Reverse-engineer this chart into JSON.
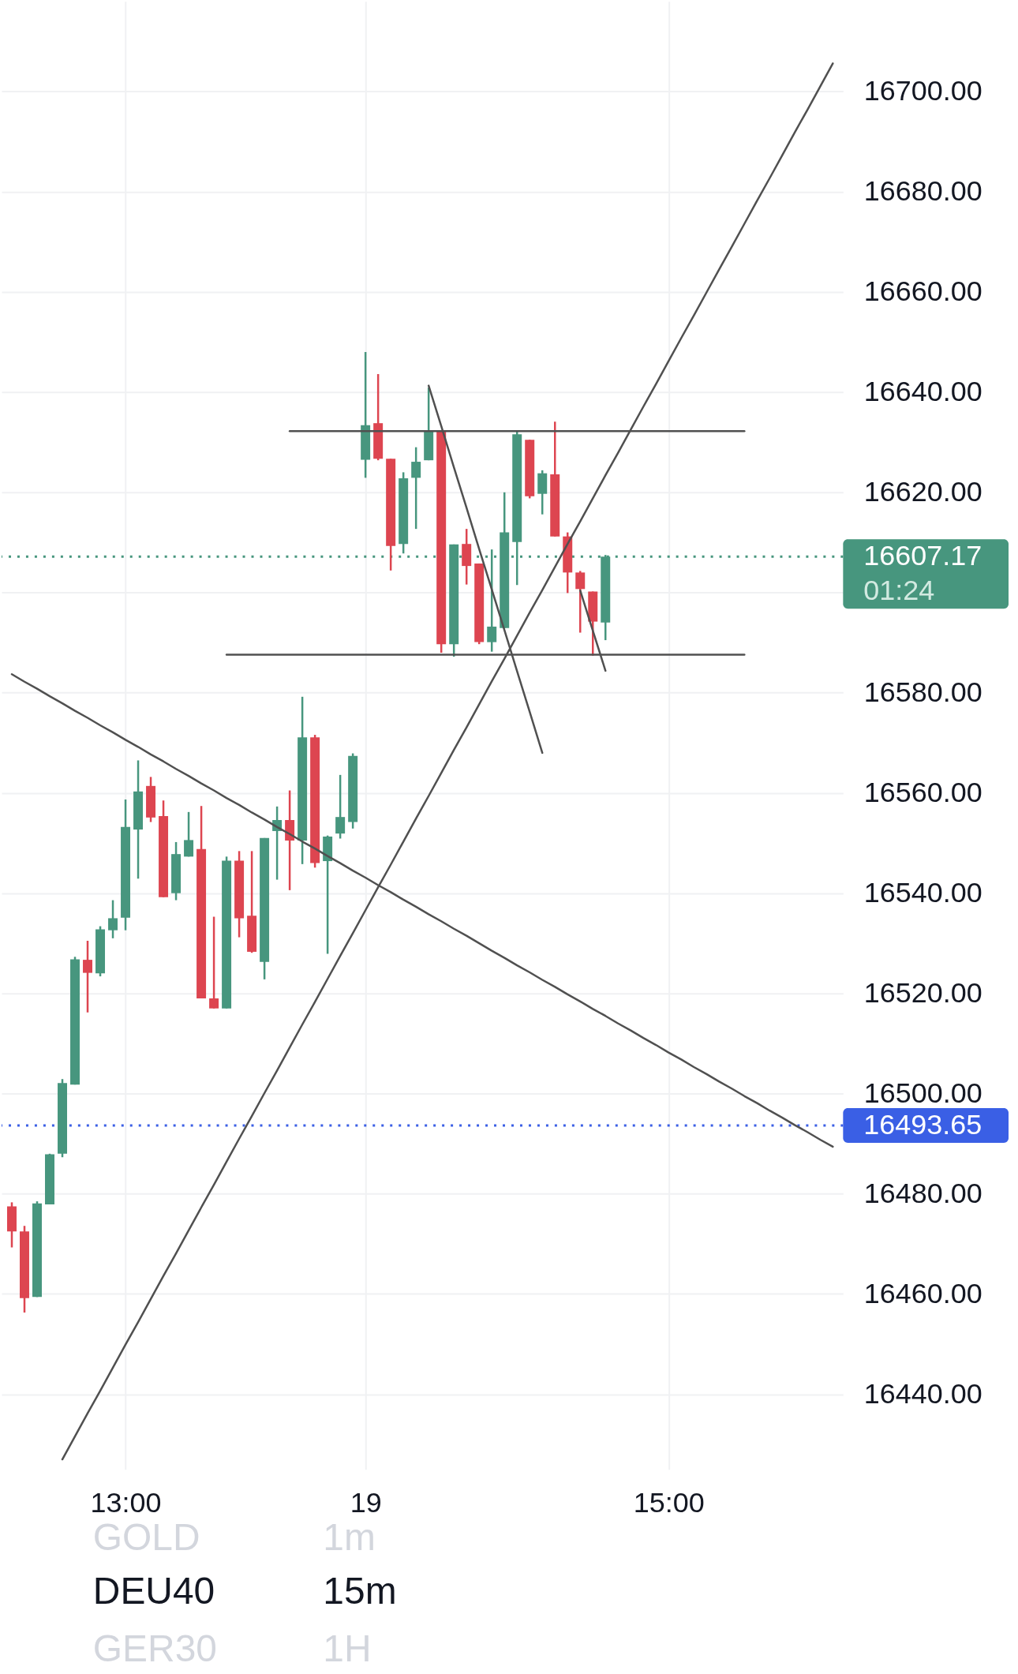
{
  "chart_data": {
    "type": "candlestick",
    "title": "DEU40",
    "subtitle": "15m",
    "categories": [
      null,
      null,
      null,
      null,
      null,
      null,
      null,
      null,
      null,
      "13:00",
      null,
      null,
      null,
      null,
      null,
      null,
      null,
      null,
      null,
      null,
      null,
      null,
      null,
      null,
      null,
      null,
      null,
      null,
      "19",
      null,
      null,
      null,
      null,
      null,
      null,
      null,
      null,
      null,
      null,
      null,
      null,
      null,
      null,
      null,
      null,
      null,
      null,
      null,
      null,
      null,
      null,
      null,
      "15:00",
      null,
      null,
      null,
      null,
      null,
      null,
      null,
      null,
      null,
      null,
      null,
      null,
      null
    ],
    "ohlc": [
      [
        16477.5,
        16478.3,
        16469.3,
        16472.5
      ],
      [
        16472.5,
        16473.6,
        16456.3,
        16459.2
      ],
      [
        16459.4,
        16478.5,
        16459.4,
        16478.1
      ],
      [
        16477.9,
        16488.0,
        16477.9,
        16487.9
      ],
      [
        16488.0,
        16502.9,
        16487.3,
        16502.1
      ],
      [
        16501.8,
        16527.3,
        16501.8,
        16526.8
      ],
      [
        16526.7,
        16530.5,
        16516.2,
        16524.1
      ],
      [
        16524.0,
        16533.4,
        16523.4,
        16532.8
      ],
      [
        16532.6,
        16538.6,
        16531.0,
        16535.0
      ],
      [
        16535.1,
        16558.7,
        16532.6,
        16553.2
      ],
      [
        16552.7,
        16566.5,
        16542.9,
        16560.3
      ],
      [
        16561.4,
        16563.2,
        16554.2,
        16555.1
      ],
      [
        16555.4,
        16558.5,
        16539.2,
        16539.2
      ],
      [
        16540.0,
        16550.2,
        16538.6,
        16547.8
      ],
      [
        16547.3,
        16556.2,
        16547.3,
        16550.6
      ],
      [
        16548.8,
        16557.4,
        16519.0,
        16519.0
      ],
      [
        16519.0,
        16535.3,
        16517.0,
        16517.0
      ],
      [
        16517.0,
        16547.3,
        16517.0,
        16546.5
      ],
      [
        16546.5,
        16548.4,
        16531.2,
        16535.0
      ],
      [
        16535.5,
        16548.4,
        16528.1,
        16528.3
      ],
      [
        16526.3,
        16551.0,
        16522.8,
        16551.0
      ],
      [
        16552.4,
        16557.3,
        16542.7,
        16554.6
      ],
      [
        16554.6,
        16560.5,
        16540.6,
        16550.5
      ],
      [
        16550.5,
        16579.2,
        16545.8,
        16571.1
      ],
      [
        16571.1,
        16571.6,
        16545.1,
        16546.0
      ],
      [
        16546.4,
        16551.5,
        16527.9,
        16551.3
      ],
      [
        16551.9,
        16563.6,
        16550.9,
        16555.2
      ],
      [
        16554.2,
        16567.9,
        16552.9,
        16567.4
      ],
      [
        16626.5,
        16648.0,
        16622.9,
        16633.4
      ],
      [
        16633.8,
        16643.6,
        16626.4,
        16626.7
      ],
      [
        16626.7,
        16626.7,
        16604.4,
        16609.3
      ],
      [
        16609.7,
        16624.0,
        16607.8,
        16622.8
      ],
      [
        16622.9,
        16629.0,
        16612.7,
        16626.1
      ],
      [
        16626.4,
        16640.9,
        16626.4,
        16632.4
      ],
      [
        16632.2,
        16632.2,
        16588.0,
        16589.7
      ],
      [
        16589.7,
        16609.6,
        16587.2,
        16609.6
      ],
      [
        16609.7,
        16612.7,
        16601.6,
        16605.3
      ],
      [
        16605.8,
        16605.8,
        16589.7,
        16590.1
      ],
      [
        16590.1,
        16608.6,
        16588.2,
        16593.2
      ],
      [
        16592.9,
        16620.0,
        16592.9,
        16612.0
      ],
      [
        16610.1,
        16632.4,
        16601.5,
        16631.6
      ],
      [
        16630.5,
        16630.5,
        16618.8,
        16619.2
      ],
      [
        16619.7,
        16624.4,
        16615.6,
        16623.8
      ],
      [
        16623.6,
        16634.1,
        16611.2,
        16611.2
      ],
      [
        16611.2,
        16612.0,
        16599.9,
        16604.0
      ],
      [
        16604.0,
        16604.3,
        16592.0,
        16600.7
      ],
      [
        16600.2,
        16600.2,
        16587.4,
        16594.2
      ],
      [
        16594.0,
        16607.5,
        16590.5,
        16607.17
      ],
      null,
      null,
      null,
      null,
      null,
      null,
      null,
      null,
      null,
      null,
      null,
      null,
      null,
      null,
      null,
      null,
      null,
      null
    ],
    "colors": [
      "#dd4550",
      "#dd4550",
      "#47967e",
      "#47967e",
      "#47967e",
      "#47967e",
      "#dd4550",
      "#47967e",
      "#47967e",
      "#47967e",
      "#47967e",
      "#dd4550",
      "#dd4550",
      "#47967e",
      "#47967e",
      "#dd4550",
      "#dd4550",
      "#47967e",
      "#dd4550",
      "#dd4550",
      "#47967e",
      "#47967e",
      "#dd4550",
      "#47967e",
      "#dd4550",
      "#47967e",
      "#47967e",
      "#47967e",
      "#47967e",
      "#dd4550",
      "#dd4550",
      "#47967e",
      "#47967e",
      "#47967e",
      "#dd4550",
      "#47967e",
      "#dd4550",
      "#dd4550",
      "#47967e",
      "#47967e",
      "#47967e",
      "#dd4550",
      "#47967e",
      "#dd4550",
      "#dd4550",
      "#dd4550",
      "#dd4550",
      "#47967e",
      null,
      null,
      null,
      null,
      null,
      null,
      null,
      null,
      null,
      null,
      null,
      null,
      null,
      null,
      null,
      null,
      null,
      null
    ],
    "series": [
      {
        "type": "line",
        "color": "#505050",
        "values": [
          16583.7,
          16582.2,
          16580.8,
          16579.3,
          16577.9,
          16576.4,
          16575.0,
          16573.5,
          16572.1,
          16570.6,
          16569.2,
          16567.7,
          16566.3,
          16564.8,
          16563.4,
          16561.9,
          16560.5,
          16559.0,
          16557.6,
          16556.1,
          16554.7,
          16553.2,
          16551.8,
          16550.3,
          16548.9,
          16547.4,
          16546.0,
          16544.5,
          16543.1,
          16541.6,
          16540.2,
          16538.7,
          16537.3,
          16535.8,
          16534.4,
          16532.9,
          16531.5,
          16530.0,
          16528.5,
          16527.1,
          16525.6,
          16524.2,
          16522.7,
          16521.3,
          16519.8,
          16518.4,
          16516.9,
          16515.5,
          16514.0,
          16512.6,
          16511.1,
          16509.7,
          16508.2,
          16506.8,
          16505.3,
          16503.9,
          16502.4,
          16501.0,
          16499.5,
          16498.1,
          16496.6,
          16495.2,
          16493.7,
          16492.3,
          16490.8,
          16489.4
        ]
      },
      {
        "type": "line",
        "color": "#505050",
        "values": [
          null,
          null,
          null,
          null,
          16427.0,
          16431.6,
          16436.2,
          16440.7,
          16445.3,
          16449.9,
          16454.4,
          16459.0,
          16463.6,
          16468.1,
          16472.7,
          16477.3,
          16481.8,
          16486.4,
          16491.0,
          16495.5,
          16500.1,
          16504.6,
          16509.2,
          16513.8,
          16518.3,
          16522.9,
          16527.5,
          16532.0,
          16536.6,
          16541.2,
          16545.7,
          16550.3,
          16554.9,
          16559.4,
          16564.0,
          16568.6,
          16573.1,
          16577.7,
          16582.3,
          16586.8,
          16591.4,
          16596.0,
          16600.5,
          16605.1,
          16609.7,
          16614.2,
          16618.8,
          16623.4,
          16627.9,
          16632.5,
          16637.1,
          16641.6,
          16646.2,
          16650.8,
          16655.3,
          16659.9,
          16664.5,
          16669.0,
          16673.6,
          16678.2,
          16682.7,
          16687.3,
          16691.9,
          16696.4,
          16701.0,
          16705.6
        ]
      },
      {
        "type": "line",
        "color": "#505050",
        "values": [
          null,
          null,
          null,
          null,
          null,
          null,
          null,
          null,
          null,
          null,
          null,
          null,
          null,
          null,
          null,
          null,
          null,
          null,
          null,
          null,
          null,
          null,
          16632.2,
          16632.2,
          16632.2,
          16632.2,
          16632.2,
          16632.2,
          16632.2,
          16632.2,
          16632.2,
          16632.2,
          16632.2,
          16632.2,
          16632.2,
          16632.2,
          16632.2,
          16632.2,
          16632.2,
          16632.2,
          16632.2,
          16632.2,
          16632.2,
          16632.2,
          16632.2,
          16632.2,
          16632.2,
          16632.2,
          16632.2,
          16632.2,
          16632.2,
          16632.2,
          16632.2,
          16632.2,
          16632.2,
          16632.2,
          16632.2,
          16632.2,
          16632.2,
          null,
          null,
          null,
          null,
          null,
          null,
          null
        ]
      },
      {
        "type": "line",
        "color": "#505050",
        "values": [
          null,
          null,
          null,
          null,
          null,
          null,
          null,
          null,
          null,
          null,
          null,
          null,
          null,
          null,
          null,
          null,
          null,
          16587.6,
          16587.6,
          16587.6,
          16587.6,
          16587.6,
          16587.6,
          16587.6,
          16587.6,
          16587.6,
          16587.6,
          16587.6,
          16587.6,
          16587.6,
          16587.6,
          16587.6,
          16587.6,
          16587.6,
          16587.6,
          16587.6,
          16587.6,
          16587.6,
          16587.6,
          16587.6,
          16587.6,
          16587.6,
          16587.6,
          16587.6,
          16587.6,
          16587.6,
          16587.6,
          16587.6,
          16587.6,
          16587.6,
          16587.6,
          16587.6,
          16587.6,
          16587.6,
          16587.6,
          16587.6,
          16587.6,
          16587.6,
          16587.6,
          null,
          null,
          null,
          null,
          null,
          null,
          null
        ]
      },
      {
        "type": "line",
        "color": "#505050",
        "values": [
          null,
          null,
          null,
          null,
          null,
          null,
          null,
          null,
          null,
          null,
          null,
          null,
          null,
          null,
          null,
          null,
          null,
          null,
          null,
          null,
          null,
          null,
          null,
          null,
          null,
          null,
          null,
          null,
          null,
          null,
          null,
          null,
          null,
          16641.3,
          16633.2,
          16625.0,
          16616.9,
          16608.7,
          16600.6,
          16592.5,
          16584.3,
          16576.2,
          16568.0,
          null,
          null,
          null,
          null,
          null,
          null,
          null,
          null,
          null,
          null,
          null,
          null,
          null,
          null,
          null,
          null,
          null,
          null,
          null,
          null,
          null,
          null,
          null
        ]
      },
      {
        "type": "line",
        "color": "#505050",
        "values": [
          null,
          null,
          null,
          null,
          null,
          null,
          null,
          null,
          null,
          null,
          null,
          null,
          null,
          null,
          null,
          null,
          null,
          null,
          null,
          null,
          null,
          null,
          null,
          null,
          null,
          null,
          null,
          null,
          null,
          null,
          null,
          null,
          null,
          null,
          null,
          null,
          null,
          null,
          null,
          null,
          null,
          null,
          null,
          null,
          null,
          16600.4,
          16592.4,
          16584.4,
          null,
          null,
          null,
          null,
          null,
          null,
          null,
          null,
          null,
          null,
          null,
          null,
          null,
          null,
          null,
          null,
          null,
          null
        ]
      }
    ],
    "line_style": "solid",
    "ylim": [
      16425,
      16718
    ],
    "yticks": [
      {
        "value": 16440,
        "label": "16440.00"
      },
      {
        "value": 16460,
        "label": "16460.00"
      },
      {
        "value": 16480,
        "label": "16480.00"
      },
      {
        "value": 16500,
        "label": "16500.00"
      },
      {
        "value": 16520,
        "label": "16520.00"
      },
      {
        "value": 16540,
        "label": "16540.00"
      },
      {
        "value": 16560,
        "label": "16560.00"
      },
      {
        "value": 16580,
        "label": "16580.00"
      },
      {
        "value": 16600,
        "label": null
      },
      {
        "value": 16620,
        "label": "16620.00"
      },
      {
        "value": 16640,
        "label": "16640.00"
      },
      {
        "value": 16660,
        "label": "16660.00"
      },
      {
        "value": 16680,
        "label": "16680.00"
      },
      {
        "value": 16700,
        "label": "16700.00"
      }
    ],
    "grid": true,
    "ref_lines": [
      {
        "axis": "y",
        "value": 16607.17,
        "label": "16607.17",
        "color": "#47967e",
        "line_style": "dotted"
      },
      {
        "axis": "y",
        "value": 16493.65,
        "label": "16493.65",
        "color": "#3a5fe5",
        "line_style": "dotted"
      }
    ],
    "annotations": [
      "01:24",
      "GOLD",
      "1m",
      "GER30",
      "1H"
    ]
  }
}
